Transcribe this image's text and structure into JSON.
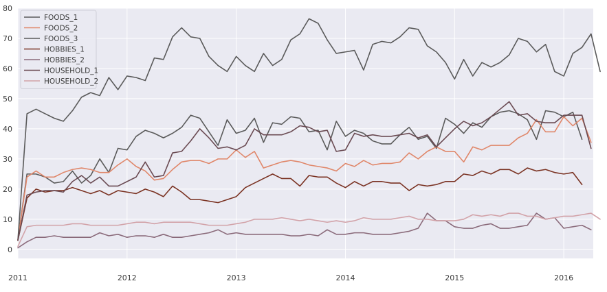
{
  "chart_data": {
    "type": "line",
    "title": "",
    "xlabel": "",
    "ylabel": "",
    "xlim": [
      2011.0,
      2016.27
    ],
    "ylim": [
      -3,
      80
    ],
    "x_ticks": [
      {
        "value": 2011,
        "label": "2011"
      },
      {
        "value": 2012,
        "label": "2012"
      },
      {
        "value": 2013,
        "label": "2013"
      },
      {
        "value": 2014,
        "label": "2014"
      },
      {
        "value": 2015,
        "label": "2015"
      },
      {
        "value": 2016,
        "label": "2016"
      }
    ],
    "y_ticks": [
      0,
      10,
      20,
      30,
      40,
      50,
      60,
      70,
      80
    ],
    "grid": true,
    "legend_position": "top-left",
    "x_start": "2011-01",
    "x_step": "1 month",
    "series": [
      {
        "name": "FOODS_1",
        "color": "#5a5a5a",
        "values": [
          3,
          25,
          25,
          24,
          22,
          22.5,
          26,
          22,
          24.5,
          30,
          25.5,
          33.5,
          33,
          37.5,
          39.5,
          38.5,
          37,
          38.5,
          40.5,
          44.5,
          43.5,
          39,
          34.5,
          43,
          38.5,
          39.5,
          43.5,
          35.5,
          42,
          41.5,
          44,
          43.5,
          39,
          39.5,
          33,
          42.5,
          37.5,
          39.5,
          38.5,
          36,
          35,
          35,
          38,
          40.5,
          36.5,
          37.5,
          33.5,
          43.5,
          41.5,
          38.5,
          42,
          40.5,
          44,
          45.5,
          46,
          45,
          43,
          36.5,
          46,
          45.5,
          44,
          45.5,
          36.5
        ]
      },
      {
        "name": "FOODS_2",
        "color": "#e0876a",
        "values": [
          3,
          24,
          26,
          24,
          24,
          25.5,
          26.5,
          27,
          26.5,
          25.5,
          25.5,
          28,
          30,
          27.5,
          26,
          23,
          23.5,
          26.5,
          29,
          29.5,
          29.5,
          28.5,
          30,
          30,
          33,
          30.5,
          32.5,
          27,
          28,
          29,
          29.5,
          29,
          28,
          27.5,
          27,
          26,
          28.5,
          27.5,
          29.5,
          28,
          28.5,
          28.5,
          29,
          32,
          30,
          32.5,
          34,
          32.5,
          32.5,
          29,
          34,
          33,
          34.5,
          34.5,
          34.5,
          37,
          38.5,
          43,
          39,
          39,
          44,
          41,
          43.5,
          35.5
        ]
      },
      {
        "name": "FOODS_3",
        "color": "#5a5a5a",
        "values": [
          3,
          45,
          46.5,
          45,
          43.5,
          42.5,
          46,
          50.5,
          52,
          51,
          57,
          53,
          57.5,
          57,
          56,
          63.5,
          63,
          70.5,
          73.5,
          70.5,
          70,
          64,
          61,
          59,
          64,
          61,
          59,
          65,
          61,
          63,
          69.5,
          71.5,
          76.5,
          75,
          69.5,
          65,
          65.5,
          66,
          59.5,
          68,
          69,
          68.5,
          70.5,
          73.5,
          73,
          67.5,
          65.5,
          62,
          56.5,
          63,
          57.5,
          62,
          60.5,
          62,
          64.5,
          70,
          69,
          65.5,
          68,
          59,
          57.5,
          65,
          67,
          71.5,
          59
        ]
      },
      {
        "name": "HOBBIES_1",
        "color": "#7a3222",
        "values": [
          3,
          17,
          20,
          19,
          19.5,
          19.5,
          20.5,
          19.5,
          18.5,
          19.5,
          18,
          19.5,
          19,
          18.5,
          20,
          19,
          17.5,
          21,
          19,
          16.5,
          16.5,
          16,
          15.5,
          16.5,
          17.5,
          20.5,
          22,
          23.5,
          25,
          23.5,
          23.5,
          21,
          24.5,
          24,
          24,
          22,
          20.5,
          22.5,
          21,
          22.5,
          22.5,
          22,
          22,
          19.5,
          21.5,
          21,
          21.5,
          22.5,
          22.5,
          25,
          24.5,
          26,
          25,
          26.5,
          26.5,
          25,
          27,
          26,
          26.5,
          25.5,
          25,
          25.5,
          21.5
        ]
      },
      {
        "name": "HOBBIES_2",
        "color": "#8a6a7a",
        "values": [
          0.5,
          2.5,
          4,
          4,
          4.5,
          4,
          4,
          4,
          4,
          5.5,
          4.5,
          5,
          4,
          4.5,
          4.5,
          4,
          5,
          4,
          4,
          4.5,
          5,
          5.5,
          6.5,
          5,
          5.5,
          5,
          5,
          5,
          5,
          5,
          4.5,
          4.5,
          5,
          4.5,
          6.5,
          5,
          5,
          5.5,
          5.5,
          5,
          5,
          5,
          5.5,
          6,
          7,
          12,
          9.5,
          9.5,
          7.5,
          7,
          7,
          8,
          8.5,
          7,
          7,
          7.5,
          8,
          12,
          10,
          10.5,
          7,
          7.5,
          8,
          6.5
        ]
      },
      {
        "name": "HOUSEHOLD_1",
        "color": "#6a4a52",
        "values": [
          3,
          18,
          19,
          19.5,
          19.5,
          19,
          22.5,
          24.5,
          22,
          24,
          21,
          21,
          22.5,
          24,
          29,
          24,
          24.5,
          32,
          32.5,
          36,
          40,
          37,
          33.5,
          34,
          33,
          34.5,
          40,
          38,
          38,
          38,
          39,
          41,
          40.5,
          39,
          39.5,
          32.5,
          33,
          38.5,
          37.5,
          38,
          37.5,
          37.5,
          38,
          38.5,
          37,
          38,
          34,
          37,
          40,
          42.5,
          41,
          42,
          44,
          46.5,
          49,
          44.5,
          45,
          42.5,
          42,
          42,
          44.5,
          44.5,
          44.5,
          33.5
        ]
      },
      {
        "name": "HOUSEHOLD_2",
        "color": "#d2a2a8",
        "values": [
          1,
          7.5,
          8,
          8,
          8,
          8,
          8.5,
          8.5,
          8,
          8,
          8,
          8,
          8.5,
          9,
          9,
          8.5,
          9,
          9,
          9,
          9,
          8.5,
          8,
          8,
          8,
          8.5,
          9,
          10,
          10,
          10,
          10.5,
          10,
          9.5,
          10,
          9.5,
          9,
          9.5,
          9,
          9.5,
          10.5,
          10,
          10,
          10,
          10.5,
          11,
          10,
          10,
          9.5,
          9.5,
          9.5,
          10,
          11.5,
          11,
          11.5,
          11,
          12,
          12,
          11,
          11,
          10,
          10.5,
          11,
          11,
          11.5,
          12,
          10
        ]
      }
    ]
  }
}
